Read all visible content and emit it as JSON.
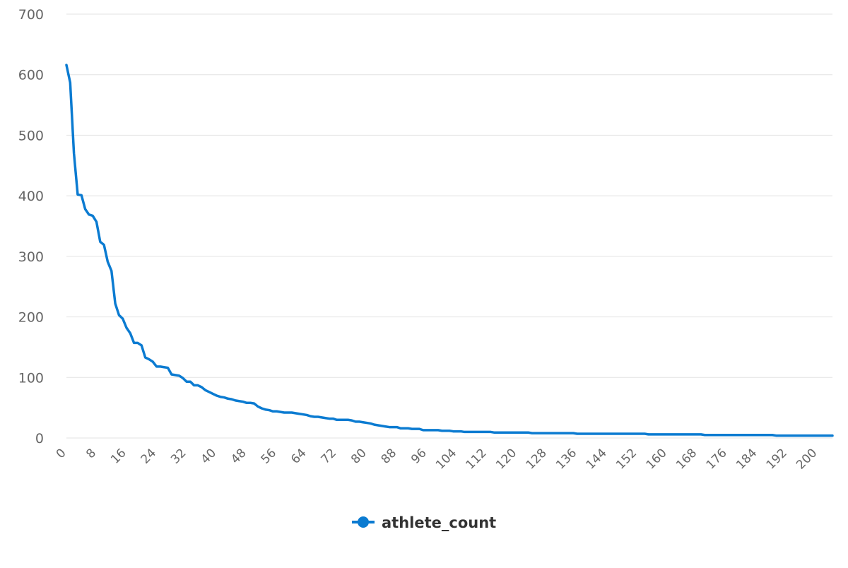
{
  "chart_data": {
    "type": "line",
    "title": "",
    "xlabel": "",
    "ylabel": "",
    "xlim": [
      0,
      204
    ],
    "ylim": [
      0,
      700
    ],
    "x_ticks": [
      0,
      8,
      16,
      24,
      32,
      40,
      48,
      56,
      64,
      72,
      80,
      88,
      96,
      104,
      112,
      120,
      128,
      136,
      144,
      152,
      160,
      168,
      176,
      184,
      192,
      200
    ],
    "y_ticks": [
      0,
      100,
      200,
      300,
      400,
      500,
      600,
      700
    ],
    "grid": true,
    "legend_position": "bottom",
    "series": [
      {
        "name": "athlete_count",
        "color": "#0b7bd1",
        "x": [
          0,
          1,
          2,
          3,
          4,
          5,
          6,
          7,
          8,
          9,
          10,
          11,
          12,
          13,
          14,
          15,
          16,
          17,
          18,
          19,
          20,
          21,
          22,
          23,
          24,
          25,
          26,
          27,
          28,
          29,
          30,
          31,
          32,
          33,
          34,
          35,
          36,
          37,
          38,
          39,
          40,
          41,
          42,
          43,
          44,
          45,
          46,
          47,
          48,
          49,
          50,
          51,
          52,
          53,
          54,
          55,
          56,
          57,
          58,
          59,
          60,
          61,
          62,
          63,
          64,
          65,
          66,
          67,
          68,
          69,
          70,
          71,
          72,
          73,
          74,
          75,
          76,
          77,
          78,
          79,
          80,
          81,
          82,
          83,
          84,
          85,
          86,
          87,
          88,
          89,
          90,
          91,
          92,
          93,
          94,
          95,
          96,
          97,
          98,
          99,
          100,
          101,
          102,
          103,
          104,
          105,
          106,
          107,
          108,
          109,
          110,
          111,
          112,
          113,
          114,
          115,
          116,
          117,
          118,
          119,
          120,
          121,
          122,
          123,
          124,
          125,
          126,
          127,
          128,
          129,
          130,
          131,
          132,
          133,
          134,
          135,
          136,
          137,
          138,
          139,
          140,
          141,
          142,
          143,
          144,
          145,
          146,
          147,
          148,
          149,
          150,
          151,
          152,
          153,
          154,
          155,
          156,
          157,
          158,
          159,
          160,
          161,
          162,
          163,
          164,
          165,
          166,
          167,
          168,
          169,
          170,
          171,
          172,
          173,
          174,
          175,
          176,
          177,
          178,
          179,
          180,
          181,
          182,
          183,
          184,
          185,
          186,
          187,
          188,
          189,
          190,
          191,
          192,
          193,
          194,
          195,
          196,
          197,
          198,
          199,
          200,
          201,
          202,
          203,
          204
        ],
        "values": [
          616,
          587,
          470,
          402,
          401,
          378,
          369,
          367,
          357,
          324,
          319,
          291,
          276,
          222,
          203,
          197,
          182,
          173,
          157,
          157,
          153,
          133,
          130,
          126,
          118,
          118,
          117,
          116,
          105,
          104,
          103,
          99,
          93,
          93,
          87,
          87,
          84,
          79,
          76,
          73,
          70,
          68,
          67,
          65,
          64,
          62,
          61,
          60,
          58,
          58,
          57,
          52,
          49,
          47,
          46,
          44,
          44,
          43,
          42,
          42,
          42,
          41,
          40,
          39,
          38,
          36,
          35,
          35,
          34,
          33,
          32,
          32,
          30,
          30,
          30,
          30,
          29,
          27,
          27,
          26,
          25,
          24,
          22,
          21,
          20,
          19,
          18,
          18,
          18,
          16,
          16,
          16,
          15,
          15,
          15,
          13,
          13,
          13,
          13,
          13,
          12,
          12,
          12,
          11,
          11,
          11,
          10,
          10,
          10,
          10,
          10,
          10,
          10,
          10,
          9,
          9,
          9,
          9,
          9,
          9,
          9,
          9,
          9,
          9,
          8,
          8,
          8,
          8,
          8,
          8,
          8,
          8,
          8,
          8,
          8,
          8,
          7,
          7,
          7,
          7,
          7,
          7,
          7,
          7,
          7,
          7,
          7,
          7,
          7,
          7,
          7,
          7,
          7,
          7,
          7,
          6,
          6,
          6,
          6,
          6,
          6,
          6,
          6,
          6,
          6,
          6,
          6,
          6,
          6,
          6,
          5,
          5,
          5,
          5,
          5,
          5,
          5,
          5,
          5,
          5,
          5,
          5,
          5,
          5,
          5,
          5,
          5,
          5,
          5,
          4,
          4,
          4,
          4,
          4,
          4,
          4,
          4,
          4,
          4,
          4,
          4,
          4,
          4,
          4,
          4
        ]
      }
    ]
  }
}
